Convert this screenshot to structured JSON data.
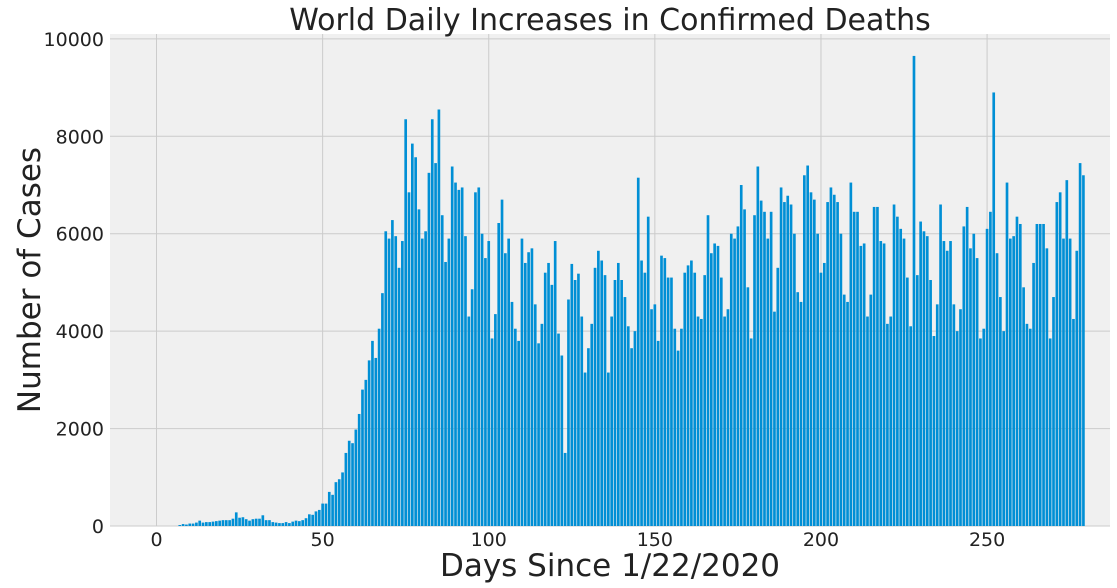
{
  "chart_data": {
    "type": "bar",
    "title": "World Daily Increases in Confirmed Deaths",
    "xlabel": "Days Since 1/22/2020",
    "ylabel": "Number of Cases",
    "xlim": [
      -14,
      287
    ],
    "ylim": [
      0,
      10100
    ],
    "xticks": [
      0,
      50,
      100,
      150,
      200,
      250
    ],
    "yticks": [
      0,
      2000,
      4000,
      6000,
      8000,
      10000
    ],
    "grid": true,
    "bar_color": "#008fd5",
    "plot_background": "#f0f0f0",
    "grid_color": "#cbcbcb",
    "series": [
      {
        "x_start": 0,
        "values": [
          0,
          0,
          0,
          0,
          0,
          0,
          0,
          20,
          40,
          30,
          50,
          50,
          70,
          110,
          70,
          80,
          80,
          90,
          100,
          110,
          120,
          120,
          120,
          150,
          280,
          170,
          180,
          140,
          110,
          140,
          150,
          150,
          220,
          120,
          120,
          80,
          70,
          60,
          60,
          80,
          60,
          90,
          110,
          100,
          120,
          160,
          240,
          230,
          300,
          330,
          460,
          460,
          700,
          640,
          900,
          960,
          1100,
          1500,
          1750,
          1700,
          1980,
          2300,
          2800,
          3000,
          3400,
          3800,
          3450,
          4050,
          4780,
          6050,
          5900,
          6280,
          5950,
          5300,
          5850,
          8350,
          6850,
          7850,
          7570,
          6500,
          5900,
          6050,
          7250,
          8350,
          7450,
          8550,
          6380,
          5420,
          5900,
          7380,
          7050,
          6900,
          6950,
          5950,
          4300,
          4860,
          6850,
          6950,
          6000,
          5500,
          5850,
          3850,
          4350,
          6220,
          6700,
          5600,
          5900,
          4600,
          4050,
          3800,
          5900,
          5400,
          5620,
          5700,
          4550,
          3750,
          4150,
          5200,
          5400,
          4950,
          5850,
          3950,
          3500,
          1500,
          4650,
          5380,
          5050,
          5180,
          4300,
          3150,
          3650,
          4150,
          5300,
          5650,
          5450,
          5150,
          3150,
          4300,
          5050,
          5400,
          5050,
          4700,
          4100,
          3650,
          4000,
          7150,
          5450,
          5200,
          6350,
          4450,
          4550,
          3800,
          5550,
          5500,
          5100,
          5100,
          4050,
          3600,
          4050,
          5200,
          5350,
          5450,
          5200,
          4300,
          4250,
          5150,
          6380,
          5600,
          5800,
          5750,
          5100,
          4300,
          4450,
          6000,
          5900,
          6150,
          7000,
          6500,
          4900,
          3850,
          6380,
          7380,
          6680,
          6450,
          5900,
          6450,
          4400,
          5300,
          6950,
          6650,
          6780,
          6600,
          6000,
          4800,
          4600,
          7200,
          7400,
          6850,
          6700,
          6000,
          5200,
          5400,
          6650,
          6950,
          6800,
          6650,
          6000,
          4750,
          4600,
          7050,
          6450,
          6450,
          5750,
          5800,
          4300,
          4750,
          6550,
          6550,
          5850,
          5800,
          4150,
          4300,
          6600,
          6350,
          6100,
          5900,
          5100,
          4100,
          9650,
          5150,
          6250,
          6050,
          5950,
          5050,
          3900,
          4550,
          6600,
          5850,
          5650,
          5850,
          4550,
          4000,
          4450,
          6150,
          6550,
          5700,
          6000,
          5500,
          3850,
          4050,
          6100,
          6450,
          8900,
          5600,
          4700,
          4000,
          7050,
          5900,
          5950,
          6350,
          6200,
          4900,
          4150,
          4050,
          5400,
          6200,
          6200,
          6200,
          5700,
          3850,
          4700,
          6650,
          6850,
          5900,
          7100,
          5900,
          4250,
          5650,
          7450,
          7200
        ]
      }
    ]
  }
}
